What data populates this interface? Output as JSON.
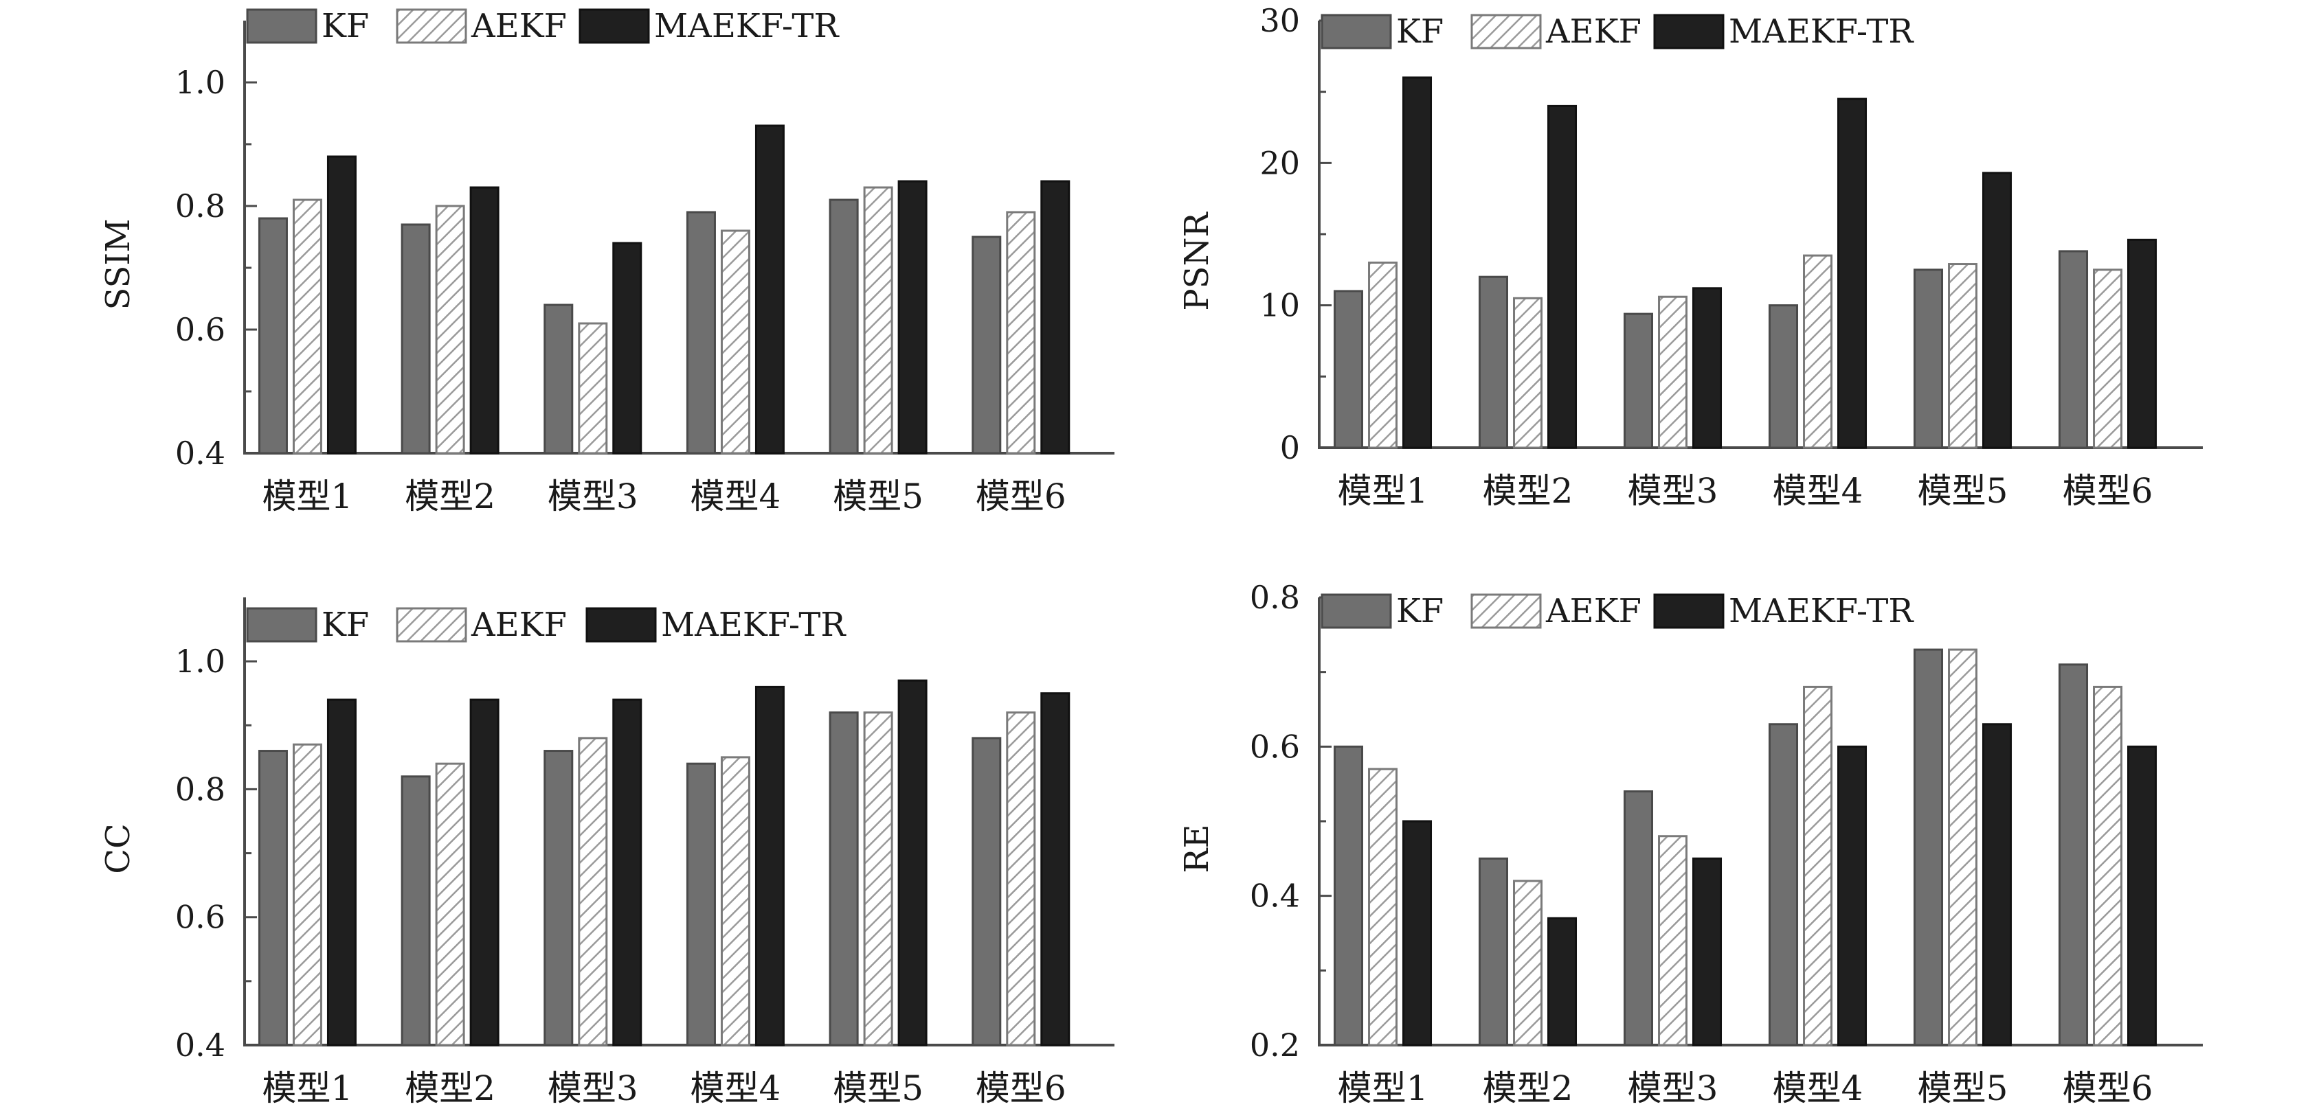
{
  "colors": {
    "kf": "#6f6f6f",
    "aekf_hatch": "#9a9a9a",
    "maekf": "#1f1f1f",
    "axis": "#4a4a4a"
  },
  "chart_data": [
    {
      "type": "bar",
      "ylabel": "SSIM",
      "ylim": [
        0.4,
        1.1
      ],
      "yticks": [
        0.4,
        0.6,
        0.8,
        1.0
      ],
      "ytick_labels": [
        "0.4",
        "0.6",
        "0.8",
        "1.0"
      ],
      "grid": false,
      "legend_position": "top-left",
      "categories": [
        "模型1",
        "模型2",
        "模型3",
        "模型4",
        "模型5",
        "模型6"
      ],
      "series": [
        {
          "name": "KF",
          "values": [
            0.78,
            0.77,
            0.64,
            0.79,
            0.81,
            0.75
          ]
        },
        {
          "name": "AEKF",
          "values": [
            0.81,
            0.8,
            0.61,
            0.76,
            0.83,
            0.79
          ]
        },
        {
          "name": "MAEKF-TR",
          "values": [
            0.88,
            0.83,
            0.74,
            0.93,
            0.84,
            0.84
          ]
        }
      ]
    },
    {
      "type": "bar",
      "ylabel": "PSNR",
      "ylim": [
        0,
        30
      ],
      "yticks": [
        0,
        10,
        20,
        30
      ],
      "ytick_labels": [
        "0",
        "10",
        "20",
        "30"
      ],
      "grid": false,
      "legend_position": "top-left",
      "categories": [
        "模型1",
        "模型2",
        "模型3",
        "模型4",
        "模型5",
        "模型6"
      ],
      "series": [
        {
          "name": "KF",
          "values": [
            11.0,
            12.0,
            9.4,
            10.0,
            12.5,
            13.8
          ]
        },
        {
          "name": "AEKF",
          "values": [
            13.0,
            10.5,
            10.6,
            13.5,
            12.9,
            12.5
          ]
        },
        {
          "name": "MAEKF-TR",
          "values": [
            26.0,
            24.0,
            11.2,
            24.5,
            19.3,
            14.6
          ]
        }
      ]
    },
    {
      "type": "bar",
      "ylabel": "CC",
      "ylim": [
        0.4,
        1.1
      ],
      "yticks": [
        0.4,
        0.6,
        0.8,
        1.0
      ],
      "ytick_labels": [
        "0.4",
        "0.6",
        "0.8",
        "1.0"
      ],
      "grid": false,
      "legend_position": "top-left",
      "categories": [
        "模型1",
        "模型2",
        "模型3",
        "模型4",
        "模型5",
        "模型6"
      ],
      "series": [
        {
          "name": "KF",
          "values": [
            0.86,
            0.82,
            0.86,
            0.84,
            0.92,
            0.88
          ]
        },
        {
          "name": "AEKF",
          "values": [
            0.87,
            0.84,
            0.88,
            0.85,
            0.92,
            0.92
          ]
        },
        {
          "name": "MAEKF-TR",
          "values": [
            0.94,
            0.94,
            0.94,
            0.96,
            0.97,
            0.95
          ]
        }
      ]
    },
    {
      "type": "bar",
      "ylabel": "RE",
      "ylim": [
        0.2,
        0.8
      ],
      "yticks": [
        0.2,
        0.4,
        0.6,
        0.8
      ],
      "ytick_labels": [
        "0.2",
        "0.4",
        "0.6",
        "0.8"
      ],
      "grid": false,
      "legend_position": "top-left",
      "categories": [
        "模型1",
        "模型2",
        "模型3",
        "模型4",
        "模型5",
        "模型6"
      ],
      "series": [
        {
          "name": "KF",
          "values": [
            0.6,
            0.45,
            0.54,
            0.63,
            0.73,
            0.71
          ]
        },
        {
          "name": "AEKF",
          "values": [
            0.57,
            0.42,
            0.48,
            0.68,
            0.73,
            0.68
          ]
        },
        {
          "name": "MAEKF-TR",
          "values": [
            0.5,
            0.37,
            0.45,
            0.6,
            0.63,
            0.6
          ]
        }
      ]
    }
  ]
}
